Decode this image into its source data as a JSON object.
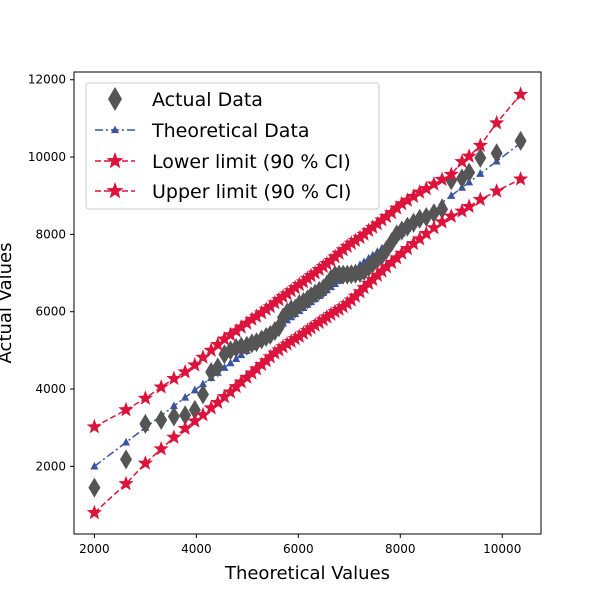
{
  "chart_data": {
    "type": "scatter",
    "title": "",
    "xlabel": "Theoretical Values",
    "ylabel": "Actual Values",
    "xlim": [
      1600,
      10760
    ],
    "ylim": [
      250,
      12200
    ],
    "xticks": [
      2000,
      4000,
      6000,
      8000,
      10000
    ],
    "yticks": [
      2000,
      4000,
      6000,
      8000,
      10000,
      12000
    ],
    "grid": false,
    "legend_position": "top-left",
    "colors": {
      "actual": "#555555",
      "theoretical": "#3a53a4",
      "limits": "#dc143c",
      "axis": "#000000"
    },
    "series": [
      {
        "name": "Actual Data",
        "kind": "marker",
        "marker": "thin-diamond",
        "points": [
          [
            2000,
            1450
          ],
          [
            2620,
            2180
          ],
          [
            3000,
            3100
          ],
          [
            3310,
            3200
          ],
          [
            3560,
            3290
          ],
          [
            3780,
            3320
          ],
          [
            3970,
            3460
          ],
          [
            4130,
            3860
          ],
          [
            4290,
            4440
          ],
          [
            4420,
            4560
          ],
          [
            4550,
            4900
          ],
          [
            4670,
            5000
          ],
          [
            4780,
            5060
          ],
          [
            4880,
            5100
          ],
          [
            4990,
            5120
          ],
          [
            5090,
            5180
          ],
          [
            5180,
            5210
          ],
          [
            5280,
            5280
          ],
          [
            5370,
            5350
          ],
          [
            5450,
            5400
          ],
          [
            5540,
            5500
          ],
          [
            5620,
            5600
          ],
          [
            5700,
            5850
          ],
          [
            5780,
            5980
          ],
          [
            5860,
            6060
          ],
          [
            5940,
            6080
          ],
          [
            6020,
            6200
          ],
          [
            6100,
            6250
          ],
          [
            6180,
            6320
          ],
          [
            6250,
            6400
          ],
          [
            6330,
            6470
          ],
          [
            6410,
            6540
          ],
          [
            6490,
            6600
          ],
          [
            6560,
            6700
          ],
          [
            6640,
            6850
          ],
          [
            6720,
            6950
          ],
          [
            6800,
            6960
          ],
          [
            6880,
            6960
          ],
          [
            6960,
            6960
          ],
          [
            7040,
            6970
          ],
          [
            7120,
            6980
          ],
          [
            7210,
            7000
          ],
          [
            7290,
            7050
          ],
          [
            7380,
            7150
          ],
          [
            7460,
            7250
          ],
          [
            7550,
            7350
          ],
          [
            7640,
            7450
          ],
          [
            7730,
            7600
          ],
          [
            7830,
            7800
          ],
          [
            7930,
            8000
          ],
          [
            8030,
            8100
          ],
          [
            8140,
            8200
          ],
          [
            8260,
            8300
          ],
          [
            8380,
            8400
          ],
          [
            8510,
            8450
          ],
          [
            8660,
            8550
          ],
          [
            8820,
            8650
          ],
          [
            9000,
            9400
          ],
          [
            9210,
            9450
          ],
          [
            9350,
            9600
          ],
          [
            9570,
            9980
          ],
          [
            9890,
            10100
          ],
          [
            10360,
            10420
          ]
        ]
      },
      {
        "name": "Theoretical Data",
        "kind": "line",
        "marker": "triangle",
        "points": [
          [
            2000,
            2000
          ],
          [
            2620,
            2620
          ],
          [
            3000,
            3000
          ],
          [
            3310,
            3310
          ],
          [
            3560,
            3560
          ],
          [
            3780,
            3780
          ],
          [
            3970,
            3970
          ],
          [
            4130,
            4130
          ],
          [
            4290,
            4290
          ],
          [
            4420,
            4420
          ],
          [
            4550,
            4550
          ],
          [
            4670,
            4670
          ],
          [
            4780,
            4780
          ],
          [
            4880,
            4880
          ],
          [
            4990,
            4990
          ],
          [
            5090,
            5090
          ],
          [
            5180,
            5180
          ],
          [
            5280,
            5280
          ],
          [
            5370,
            5370
          ],
          [
            5450,
            5450
          ],
          [
            5540,
            5540
          ],
          [
            5620,
            5620
          ],
          [
            5700,
            5700
          ],
          [
            5780,
            5780
          ],
          [
            5860,
            5860
          ],
          [
            5940,
            5940
          ],
          [
            6020,
            6020
          ],
          [
            6100,
            6100
          ],
          [
            6180,
            6180
          ],
          [
            6250,
            6250
          ],
          [
            6330,
            6330
          ],
          [
            6410,
            6410
          ],
          [
            6490,
            6490
          ],
          [
            6560,
            6560
          ],
          [
            6640,
            6640
          ],
          [
            6720,
            6720
          ],
          [
            6800,
            6800
          ],
          [
            6880,
            6880
          ],
          [
            6960,
            6960
          ],
          [
            7040,
            7040
          ],
          [
            7120,
            7120
          ],
          [
            7210,
            7210
          ],
          [
            7290,
            7290
          ],
          [
            7380,
            7380
          ],
          [
            7460,
            7460
          ],
          [
            7550,
            7550
          ],
          [
            7640,
            7640
          ],
          [
            7730,
            7730
          ],
          [
            7830,
            7830
          ],
          [
            7930,
            7930
          ],
          [
            8030,
            8030
          ],
          [
            8140,
            8140
          ],
          [
            8260,
            8260
          ],
          [
            8380,
            8380
          ],
          [
            8510,
            8510
          ],
          [
            8660,
            8660
          ],
          [
            8820,
            8820
          ],
          [
            9000,
            9000
          ],
          [
            9210,
            9210
          ],
          [
            9350,
            9350
          ],
          [
            9570,
            9570
          ],
          [
            9890,
            9890
          ],
          [
            10360,
            10360
          ]
        ]
      },
      {
        "name": "Lower limit (90 % CI)",
        "kind": "line",
        "marker": "star",
        "points": [
          [
            2000,
            800
          ],
          [
            2620,
            1550
          ],
          [
            3000,
            2080
          ],
          [
            3310,
            2450
          ],
          [
            3560,
            2750
          ],
          [
            3780,
            2980
          ],
          [
            3970,
            3170
          ],
          [
            4130,
            3330
          ],
          [
            4290,
            3510
          ],
          [
            4420,
            3650
          ],
          [
            4550,
            3800
          ],
          [
            4670,
            3920
          ],
          [
            4780,
            4060
          ],
          [
            4880,
            4180
          ],
          [
            4990,
            4300
          ],
          [
            5090,
            4410
          ],
          [
            5180,
            4520
          ],
          [
            5280,
            4630
          ],
          [
            5370,
            4730
          ],
          [
            5450,
            4830
          ],
          [
            5540,
            4930
          ],
          [
            5620,
            5010
          ],
          [
            5700,
            5090
          ],
          [
            5780,
            5160
          ],
          [
            5860,
            5230
          ],
          [
            5940,
            5300
          ],
          [
            6020,
            5360
          ],
          [
            6100,
            5440
          ],
          [
            6180,
            5510
          ],
          [
            6250,
            5580
          ],
          [
            6330,
            5650
          ],
          [
            6410,
            5720
          ],
          [
            6490,
            5790
          ],
          [
            6560,
            5860
          ],
          [
            6640,
            5930
          ],
          [
            6720,
            6000
          ],
          [
            6800,
            6060
          ],
          [
            6880,
            6130
          ],
          [
            6960,
            6210
          ],
          [
            7040,
            6300
          ],
          [
            7120,
            6400
          ],
          [
            7210,
            6510
          ],
          [
            7290,
            6620
          ],
          [
            7380,
            6730
          ],
          [
            7460,
            6830
          ],
          [
            7550,
            6940
          ],
          [
            7640,
            7050
          ],
          [
            7730,
            7160
          ],
          [
            7830,
            7270
          ],
          [
            7930,
            7390
          ],
          [
            8030,
            7510
          ],
          [
            8140,
            7630
          ],
          [
            8260,
            7760
          ],
          [
            8380,
            7880
          ],
          [
            8510,
            8020
          ],
          [
            8660,
            8170
          ],
          [
            8820,
            8320
          ],
          [
            9000,
            8470
          ],
          [
            9210,
            8600
          ],
          [
            9350,
            8720
          ],
          [
            9570,
            8900
          ],
          [
            9890,
            9120
          ],
          [
            10360,
            9430
          ]
        ]
      },
      {
        "name": "Upper limit (90 % CI)",
        "kind": "line",
        "marker": "star",
        "points": [
          [
            2000,
            3020
          ],
          [
            2620,
            3460
          ],
          [
            3000,
            3760
          ],
          [
            3310,
            4050
          ],
          [
            3560,
            4270
          ],
          [
            3780,
            4440
          ],
          [
            3970,
            4620
          ],
          [
            4130,
            4820
          ],
          [
            4290,
            5000
          ],
          [
            4420,
            5150
          ],
          [
            4550,
            5290
          ],
          [
            4670,
            5400
          ],
          [
            4780,
            5500
          ],
          [
            4880,
            5600
          ],
          [
            4990,
            5700
          ],
          [
            5090,
            5800
          ],
          [
            5180,
            5880
          ],
          [
            5280,
            5970
          ],
          [
            5370,
            6060
          ],
          [
            5450,
            6130
          ],
          [
            5540,
            6230
          ],
          [
            5620,
            6310
          ],
          [
            5700,
            6390
          ],
          [
            5780,
            6460
          ],
          [
            5860,
            6540
          ],
          [
            5940,
            6620
          ],
          [
            6020,
            6700
          ],
          [
            6100,
            6770
          ],
          [
            6180,
            6860
          ],
          [
            6250,
            6930
          ],
          [
            6330,
            7000
          ],
          [
            6410,
            7090
          ],
          [
            6490,
            7170
          ],
          [
            6560,
            7240
          ],
          [
            6640,
            7320
          ],
          [
            6720,
            7420
          ],
          [
            6800,
            7510
          ],
          [
            6880,
            7600
          ],
          [
            6960,
            7690
          ],
          [
            7040,
            7770
          ],
          [
            7120,
            7840
          ],
          [
            7210,
            7920
          ],
          [
            7290,
            8000
          ],
          [
            7380,
            8100
          ],
          [
            7460,
            8180
          ],
          [
            7550,
            8270
          ],
          [
            7640,
            8370
          ],
          [
            7730,
            8460
          ],
          [
            7830,
            8560
          ],
          [
            7930,
            8680
          ],
          [
            8030,
            8790
          ],
          [
            8140,
            8880
          ],
          [
            8260,
            8980
          ],
          [
            8380,
            9090
          ],
          [
            8510,
            9180
          ],
          [
            8660,
            9300
          ],
          [
            8820,
            9420
          ],
          [
            9000,
            9550
          ],
          [
            9210,
            9880
          ],
          [
            9350,
            10020
          ],
          [
            9570,
            10300
          ],
          [
            9890,
            10880
          ],
          [
            10360,
            11620
          ]
        ]
      }
    ]
  }
}
